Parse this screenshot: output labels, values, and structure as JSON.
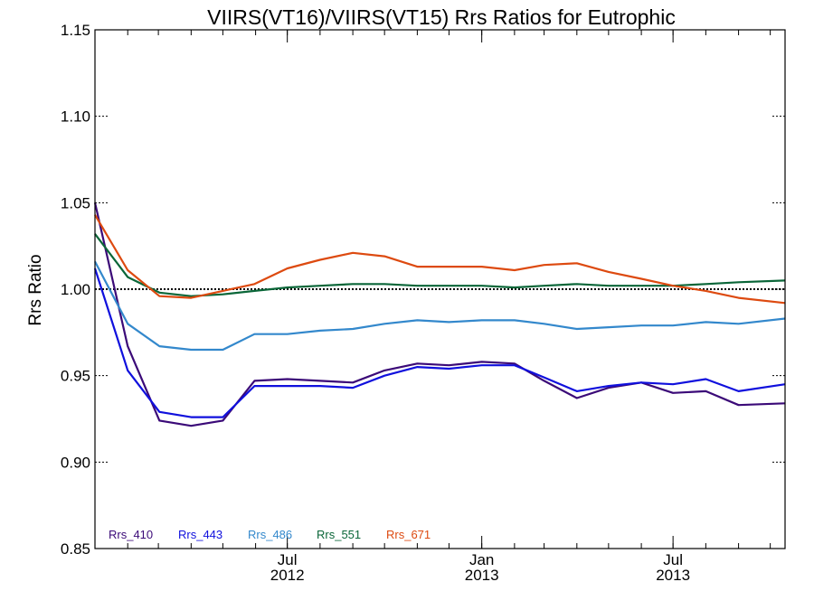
{
  "chart_data": {
    "type": "line",
    "title": "VIIRS(VT16)/VIIRS(VT15)  Rrs Ratios for Eutrophic",
    "xlabel": "",
    "ylabel": "Rrs Ratio",
    "xlim": [
      "2012-01-01",
      "2013-10-15"
    ],
    "ylim": [
      0.85,
      1.15
    ],
    "yticks": [
      0.85,
      0.9,
      0.95,
      1.0,
      1.05,
      1.1,
      1.15
    ],
    "ytick_labels": [
      "0.85",
      "0.90",
      "0.95",
      "1.00",
      "1.05",
      "1.10",
      "1.15"
    ],
    "xticks": [
      {
        "date": "2012-07-01",
        "month": "Jul",
        "year": "2012"
      },
      {
        "date": "2013-01-01",
        "month": "Jan",
        "year": "2013"
      },
      {
        "date": "2013-07-01",
        "month": "Jul",
        "year": "2013"
      }
    ],
    "reference_line": 1.0,
    "legend_position": "bottom-left",
    "series": [
      {
        "name": "Rrs_410",
        "color": "#3b0a78",
        "points": [
          [
            "2012-01-01",
            1.05
          ],
          [
            "2012-02-01",
            0.967
          ],
          [
            "2012-03-02",
            0.924
          ],
          [
            "2012-04-01",
            0.921
          ],
          [
            "2012-05-01",
            0.924
          ],
          [
            "2012-05-31",
            0.947
          ],
          [
            "2012-07-01",
            0.948
          ],
          [
            "2012-08-01",
            0.947
          ],
          [
            "2012-09-01",
            0.946
          ],
          [
            "2012-10-01",
            0.953
          ],
          [
            "2012-11-01",
            0.957
          ],
          [
            "2012-12-01",
            0.956
          ],
          [
            "2013-01-01",
            0.958
          ],
          [
            "2013-02-01",
            0.957
          ],
          [
            "2013-03-01",
            0.947
          ],
          [
            "2013-04-01",
            0.937
          ],
          [
            "2013-05-01",
            0.943
          ],
          [
            "2013-06-01",
            0.946
          ],
          [
            "2013-07-01",
            0.94
          ],
          [
            "2013-08-01",
            0.941
          ],
          [
            "2013-09-01",
            0.933
          ],
          [
            "2013-10-15",
            0.934
          ]
        ]
      },
      {
        "name": "Rrs_443",
        "color": "#1010dd",
        "points": [
          [
            "2012-01-01",
            1.012
          ],
          [
            "2012-02-01",
            0.953
          ],
          [
            "2012-03-02",
            0.929
          ],
          [
            "2012-04-01",
            0.926
          ],
          [
            "2012-05-01",
            0.926
          ],
          [
            "2012-05-31",
            0.944
          ],
          [
            "2012-07-01",
            0.944
          ],
          [
            "2012-08-01",
            0.944
          ],
          [
            "2012-09-01",
            0.943
          ],
          [
            "2012-10-01",
            0.95
          ],
          [
            "2012-11-01",
            0.955
          ],
          [
            "2012-12-01",
            0.954
          ],
          [
            "2013-01-01",
            0.956
          ],
          [
            "2013-02-01",
            0.956
          ],
          [
            "2013-03-01",
            0.949
          ],
          [
            "2013-04-01",
            0.941
          ],
          [
            "2013-05-01",
            0.944
          ],
          [
            "2013-06-01",
            0.946
          ],
          [
            "2013-07-01",
            0.945
          ],
          [
            "2013-08-01",
            0.948
          ],
          [
            "2013-09-01",
            0.941
          ],
          [
            "2013-10-15",
            0.945
          ]
        ]
      },
      {
        "name": "Rrs_486",
        "color": "#3388cc",
        "points": [
          [
            "2012-01-01",
            1.016
          ],
          [
            "2012-02-01",
            0.98
          ],
          [
            "2012-03-02",
            0.967
          ],
          [
            "2012-04-01",
            0.965
          ],
          [
            "2012-05-01",
            0.965
          ],
          [
            "2012-05-31",
            0.974
          ],
          [
            "2012-07-01",
            0.974
          ],
          [
            "2012-08-01",
            0.976
          ],
          [
            "2012-09-01",
            0.977
          ],
          [
            "2012-10-01",
            0.98
          ],
          [
            "2012-11-01",
            0.982
          ],
          [
            "2012-12-01",
            0.981
          ],
          [
            "2013-01-01",
            0.982
          ],
          [
            "2013-02-01",
            0.982
          ],
          [
            "2013-03-01",
            0.98
          ],
          [
            "2013-04-01",
            0.977
          ],
          [
            "2013-05-01",
            0.978
          ],
          [
            "2013-06-01",
            0.979
          ],
          [
            "2013-07-01",
            0.979
          ],
          [
            "2013-08-01",
            0.981
          ],
          [
            "2013-09-01",
            0.98
          ],
          [
            "2013-10-15",
            0.983
          ]
        ]
      },
      {
        "name": "Rrs_551",
        "color": "#0a6638",
        "points": [
          [
            "2012-01-01",
            1.032
          ],
          [
            "2012-02-01",
            1.007
          ],
          [
            "2012-03-02",
            0.998
          ],
          [
            "2012-04-01",
            0.996
          ],
          [
            "2012-05-01",
            0.997
          ],
          [
            "2012-05-31",
            0.999
          ],
          [
            "2012-07-01",
            1.001
          ],
          [
            "2012-08-01",
            1.002
          ],
          [
            "2012-09-01",
            1.003
          ],
          [
            "2012-10-01",
            1.003
          ],
          [
            "2012-11-01",
            1.002
          ],
          [
            "2012-12-01",
            1.002
          ],
          [
            "2013-01-01",
            1.002
          ],
          [
            "2013-02-01",
            1.001
          ],
          [
            "2013-03-01",
            1.002
          ],
          [
            "2013-04-01",
            1.003
          ],
          [
            "2013-05-01",
            1.002
          ],
          [
            "2013-06-01",
            1.002
          ],
          [
            "2013-07-01",
            1.002
          ],
          [
            "2013-08-01",
            1.003
          ],
          [
            "2013-09-01",
            1.004
          ],
          [
            "2013-10-15",
            1.005
          ]
        ]
      },
      {
        "name": "Rrs_671",
        "color": "#dd4a10",
        "points": [
          [
            "2012-01-01",
            1.043
          ],
          [
            "2012-02-01",
            1.011
          ],
          [
            "2012-03-02",
            0.996
          ],
          [
            "2012-04-01",
            0.995
          ],
          [
            "2012-05-01",
            0.999
          ],
          [
            "2012-05-31",
            1.003
          ],
          [
            "2012-07-01",
            1.012
          ],
          [
            "2012-08-01",
            1.017
          ],
          [
            "2012-09-01",
            1.021
          ],
          [
            "2012-10-01",
            1.019
          ],
          [
            "2012-11-01",
            1.013
          ],
          [
            "2012-12-01",
            1.013
          ],
          [
            "2013-01-01",
            1.013
          ],
          [
            "2013-02-01",
            1.011
          ],
          [
            "2013-03-01",
            1.014
          ],
          [
            "2013-04-01",
            1.015
          ],
          [
            "2013-05-01",
            1.01
          ],
          [
            "2013-06-01",
            1.006
          ],
          [
            "2013-07-01",
            1.002
          ],
          [
            "2013-08-01",
            0.999
          ],
          [
            "2013-09-01",
            0.995
          ],
          [
            "2013-10-15",
            0.992
          ]
        ]
      }
    ]
  }
}
